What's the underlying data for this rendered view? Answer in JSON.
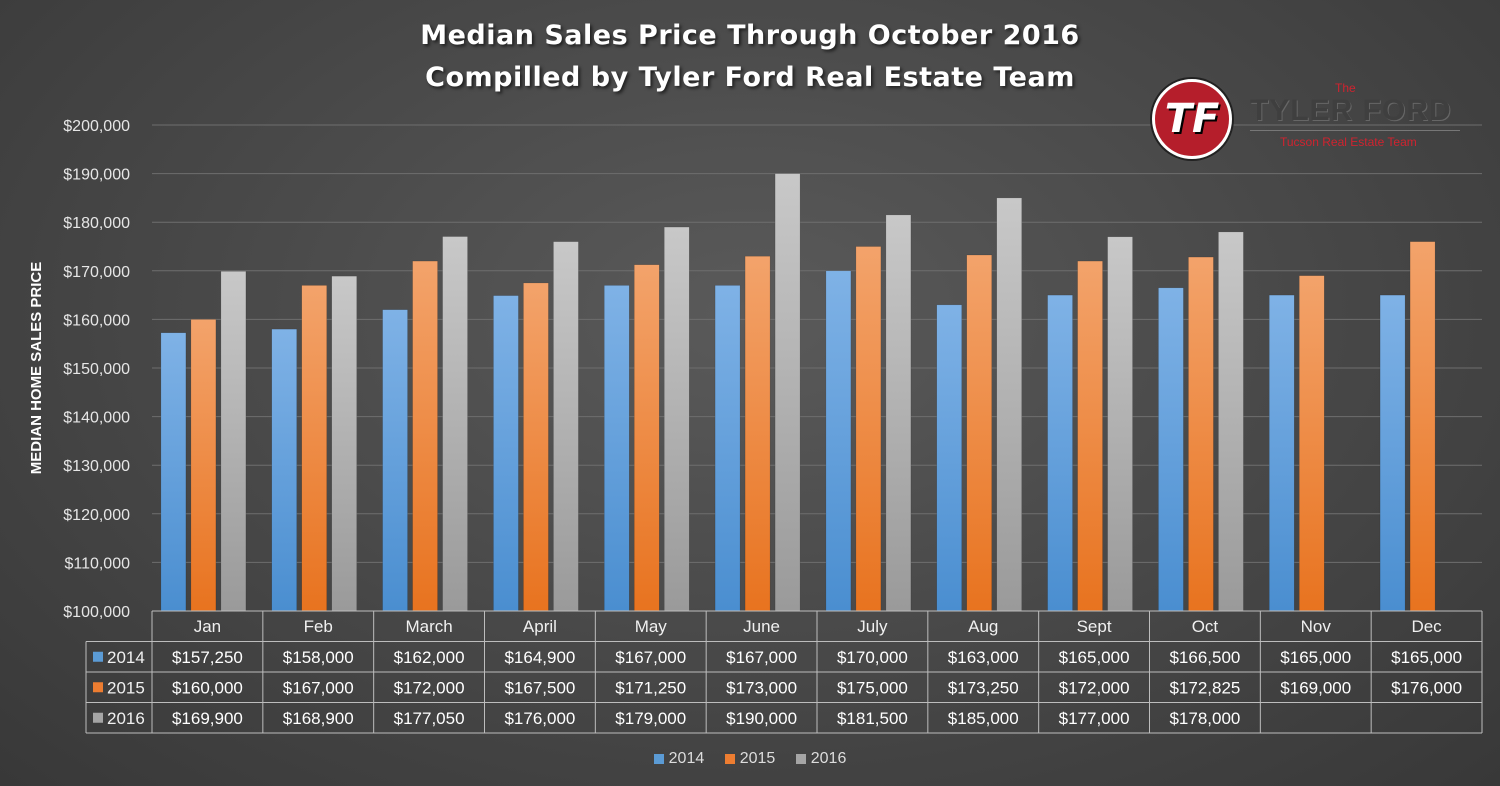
{
  "header": {
    "title_line1": "Median Sales Price Through October 2016",
    "title_line2": "Compilled by Tyler Ford Real Estate Team"
  },
  "logo": {
    "initials": "TF",
    "the": "The",
    "name": "TYLER FORD",
    "tagline": "Tucson Real Estate Team",
    "color": "#b51e2b"
  },
  "chart_data": {
    "type": "bar",
    "ylabel": "MEDIAN HOME SALES PRICE",
    "ylim": [
      100000,
      200000
    ],
    "y_ticks": [
      "$100,000",
      "$110,000",
      "$120,000",
      "$130,000",
      "$140,000",
      "$150,000",
      "$160,000",
      "$170,000",
      "$180,000",
      "$190,000",
      "$200,000"
    ],
    "grid": true,
    "legend": "bottom",
    "categories": [
      "Jan",
      "Feb",
      "March",
      "April",
      "May",
      "June",
      "July",
      "Aug",
      "Sept",
      "Oct",
      "Nov",
      "Dec"
    ],
    "series": [
      {
        "name": "2014",
        "color": "#5b9bd5",
        "values": [
          157250,
          158000,
          162000,
          164900,
          167000,
          167000,
          170000,
          163000,
          165000,
          166500,
          165000,
          165000
        ],
        "labels": [
          "$157,250",
          "$158,000",
          "$162,000",
          "$164,900",
          "$167,000",
          "$167,000",
          "$170,000",
          "$163,000",
          "$165,000",
          "$166,500",
          "$165,000",
          "$165,000"
        ]
      },
      {
        "name": "2015",
        "color": "#ed7d31",
        "values": [
          160000,
          167000,
          172000,
          167500,
          171250,
          173000,
          175000,
          173250,
          172000,
          172825,
          169000,
          176000
        ],
        "labels": [
          "$160,000",
          "$167,000",
          "$172,000",
          "$167,500",
          "$171,250",
          "$173,000",
          "$175,000",
          "$173,250",
          "$172,000",
          "$172,825",
          "$169,000",
          "$176,000"
        ]
      },
      {
        "name": "2016",
        "color": "#a5a5a5",
        "values": [
          169900,
          168900,
          177050,
          176000,
          179000,
          190000,
          181500,
          185000,
          177000,
          178000,
          null,
          null
        ],
        "labels": [
          "$169,900",
          "$168,900",
          "$177,050",
          "$176,000",
          "$179,000",
          "$190,000",
          "$181,500",
          "$185,000",
          "$177,000",
          "$178,000",
          "",
          ""
        ]
      }
    ]
  }
}
